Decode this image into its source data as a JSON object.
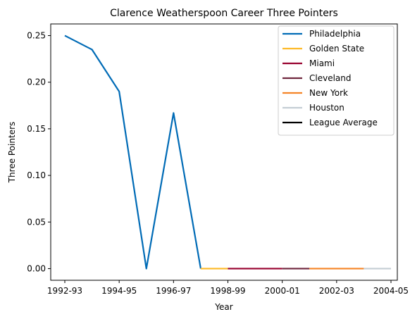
{
  "chart_data": {
    "type": "line",
    "title": "Clarence Weatherspoon Career Three Pointers",
    "xlabel": "Year",
    "ylabel": "Three Pointers",
    "x_ticks": [
      "1992-93",
      "1994-95",
      "1996-97",
      "1998-99",
      "2000-01",
      "2002-03",
      "2004-05"
    ],
    "y_ticks": [
      "0.00",
      "0.05",
      "0.10",
      "0.15",
      "0.20",
      "0.25"
    ],
    "ylim": [
      -0.0125,
      0.2625
    ],
    "xlim_seasons": [
      "1992-93",
      "2004-05"
    ],
    "grid": false,
    "legend_position": "top-right",
    "series": [
      {
        "name": "Philadelphia",
        "color": "#006bb6",
        "points": [
          [
            "1992-93",
            0.25
          ],
          [
            "1993-94",
            0.235
          ],
          [
            "1994-95",
            0.19
          ],
          [
            "1995-96",
            0.0
          ],
          [
            "1996-97",
            0.167
          ],
          [
            "1997-98",
            0.0
          ]
        ]
      },
      {
        "name": "Golden State",
        "color": "#fdb927",
        "points": [
          [
            "1997-98",
            0.0
          ],
          [
            "1998-99",
            0.0
          ]
        ]
      },
      {
        "name": "Miami",
        "color": "#98002e",
        "points": [
          [
            "1998-99",
            0.0
          ],
          [
            "1999-00",
            0.0
          ],
          [
            "2000-01",
            0.0
          ]
        ]
      },
      {
        "name": "Cleveland",
        "color": "#6f263d",
        "points": [
          [
            "2000-01",
            0.0
          ],
          [
            "2001-02",
            0.0
          ]
        ]
      },
      {
        "name": "New York",
        "color": "#f58426",
        "points": [
          [
            "2001-02",
            0.0
          ],
          [
            "2002-03",
            0.0
          ],
          [
            "2003-04",
            0.0
          ]
        ]
      },
      {
        "name": "Houston",
        "color": "#c4ced4",
        "points": [
          [
            "2003-04",
            0.0
          ],
          [
            "2004-05",
            0.0
          ]
        ]
      },
      {
        "name": "League Average",
        "color": "#000000",
        "points": []
      }
    ]
  }
}
